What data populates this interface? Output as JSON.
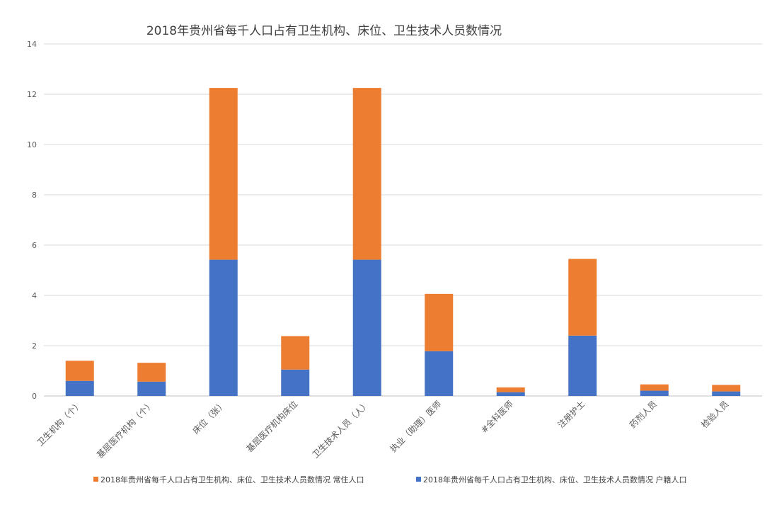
{
  "chart_data": {
    "type": "bar",
    "stacked": true,
    "title": "2018年贵州省每千人口占有卫生机构、床位、卫生技术人员数情况",
    "xlabel": "",
    "ylabel": "",
    "ylim": [
      0,
      14
    ],
    "yticks": [
      0,
      2,
      4,
      6,
      8,
      10,
      12,
      14
    ],
    "grid": true,
    "legend_position": "bottom",
    "categories": [
      "卫生机构（个）",
      "基层医疗机构（个）",
      "床位（张）",
      "基层医疗机构床位",
      "卫生技术人员（人）",
      "执业（助理）医师",
      "#全科医师",
      "注册护士",
      "药剂人员",
      "检验人员"
    ],
    "series": [
      {
        "name": "2018年贵州省每千人口占有卫生机构、床位、卫生技术人员数情况 户籍人口",
        "color": "#4472C4",
        "values": [
          0.6,
          0.57,
          5.42,
          1.05,
          5.42,
          1.78,
          0.15,
          2.4,
          0.21,
          0.18
        ]
      },
      {
        "name": "2018年贵州省每千人口占有卫生机构、床位、卫生技术人员数情况 常住人口",
        "color": "#ED7D31",
        "values": [
          0.8,
          0.75,
          6.83,
          1.33,
          6.83,
          2.28,
          0.19,
          3.05,
          0.25,
          0.26
        ]
      }
    ],
    "legend_order": [
      1,
      0
    ]
  }
}
